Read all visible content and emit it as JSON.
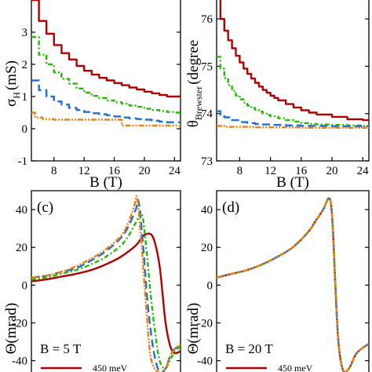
{
  "chart_data": [
    {
      "type": "line",
      "panel": "a",
      "panel_label": "",
      "xlabel": "B (T)",
      "ylabel_main": "σ",
      "ylabel_sub": "H",
      "ylabel_unit": "(mS)",
      "xlim": [
        5,
        24.8
      ],
      "ylim": [
        -1,
        4
      ],
      "xticks": [
        8,
        12,
        16,
        20,
        24
      ],
      "yticks": [
        -1,
        0,
        1,
        2,
        3
      ],
      "step": true,
      "series": [
        {
          "color": "#b00000",
          "dash": "solid",
          "x": [
            5,
            6,
            7,
            8,
            9,
            10,
            11,
            12,
            13,
            14,
            15,
            16,
            17,
            18,
            19,
            20,
            21,
            22,
            23,
            24,
            24.8
          ],
          "y": [
            4.0,
            3.35,
            2.95,
            2.6,
            2.35,
            2.15,
            1.95,
            1.8,
            1.68,
            1.58,
            1.5,
            1.42,
            1.35,
            1.28,
            1.22,
            1.15,
            1.1,
            1.05,
            1.0,
            1.0,
            1.0
          ]
        },
        {
          "color": "#22bb00",
          "dash": "6,3,2,3",
          "x": [
            5,
            6,
            7,
            8,
            9,
            10,
            11,
            12,
            13,
            14,
            15,
            16,
            17,
            18,
            19,
            20,
            21,
            22,
            23,
            24,
            24.8
          ],
          "y": [
            2.85,
            2.3,
            2.0,
            1.75,
            1.55,
            1.4,
            1.25,
            1.12,
            1.02,
            0.95,
            0.88,
            0.82,
            0.78,
            0.72,
            0.68,
            0.62,
            0.58,
            0.55,
            0.52,
            0.5,
            0.5
          ]
        },
        {
          "color": "#1f6fd6",
          "dash": "10,5",
          "x": [
            5,
            6,
            7,
            8,
            9,
            10,
            11,
            12,
            13,
            14,
            15,
            16,
            17,
            18,
            19,
            20,
            21,
            22,
            23,
            24,
            24.8
          ],
          "y": [
            1.5,
            1.2,
            1.0,
            0.85,
            0.75,
            0.65,
            0.58,
            0.52,
            0.48,
            0.45,
            0.42,
            0.38,
            0.35,
            0.32,
            0.3,
            0.28,
            0.25,
            0.22,
            0.2,
            0.2,
            0.2
          ]
        },
        {
          "color": "#f07f0e",
          "dash": "7,2,2,2,2,2",
          "x": [
            5,
            5.5,
            6.5,
            8,
            10,
            12,
            14,
            16,
            17,
            18,
            20,
            22,
            24,
            24.8
          ],
          "y": [
            0.5,
            0.35,
            0.3,
            0.28,
            0.28,
            0.28,
            0.28,
            0.28,
            0.1,
            0.1,
            0.1,
            0.1,
            0.1,
            0.1
          ]
        }
      ]
    },
    {
      "type": "line",
      "panel": "b",
      "panel_label": "",
      "xlabel": "B (T)",
      "ylabel_main": "θ",
      "ylabel_sub": "Brewster",
      "ylabel_unit": "(degree",
      "xlim": [
        5,
        24.8
      ],
      "ylim": [
        73,
        76.4
      ],
      "xticks": [
        8,
        12,
        16,
        20,
        24
      ],
      "yticks": [
        73,
        74,
        75,
        76
      ],
      "step": true,
      "series": [
        {
          "color": "#b00000",
          "dash": "solid",
          "x": [
            5,
            5.5,
            6,
            6.5,
            7,
            7.5,
            8,
            8.5,
            9,
            9.5,
            10,
            10.5,
            11,
            11.5,
            12,
            12.5,
            13,
            14,
            15,
            16,
            17,
            18,
            20,
            22,
            24,
            24.8
          ],
          "y": [
            76.5,
            76.0,
            75.75,
            75.55,
            75.38,
            75.22,
            75.08,
            74.95,
            74.84,
            74.74,
            74.65,
            74.57,
            74.5,
            74.44,
            74.38,
            74.33,
            74.28,
            74.2,
            74.13,
            74.07,
            74.02,
            73.98,
            73.93,
            73.88,
            73.86,
            73.85
          ]
        },
        {
          "color": "#22bb00",
          "dash": "6,3,2,3",
          "x": [
            5,
            5.5,
            6,
            6.5,
            7,
            7.5,
            8,
            8.5,
            9,
            9.5,
            10,
            10.5,
            11,
            11.5,
            12,
            13,
            14,
            15,
            16,
            17,
            18,
            20,
            22,
            24,
            24.8
          ],
          "y": [
            75.2,
            74.95,
            74.75,
            74.6,
            74.48,
            74.38,
            74.3,
            74.23,
            74.17,
            74.12,
            74.08,
            74.04,
            74.0,
            73.97,
            73.94,
            73.9,
            73.86,
            73.83,
            73.8,
            73.78,
            73.77,
            73.76,
            73.75,
            73.74,
            73.74
          ]
        },
        {
          "color": "#1f6fd6",
          "dash": "10,5",
          "x": [
            5,
            5.5,
            6,
            7,
            8,
            9,
            10,
            11,
            12,
            14,
            16,
            18,
            20,
            22,
            24,
            24.8
          ],
          "y": [
            74.05,
            73.97,
            73.92,
            73.86,
            73.82,
            73.8,
            73.78,
            73.77,
            73.76,
            73.75,
            73.74,
            73.74,
            73.73,
            73.73,
            73.73,
            73.73
          ]
        },
        {
          "color": "#f07f0e",
          "dash": "7,2,2,2,2,2",
          "x": [
            5,
            6,
            8,
            10,
            12,
            14,
            16,
            18,
            20,
            22,
            24,
            24.8
          ],
          "y": [
            73.74,
            73.72,
            73.72,
            73.71,
            73.71,
            73.71,
            73.7,
            73.7,
            73.7,
            73.7,
            73.7,
            73.7
          ]
        }
      ]
    },
    {
      "type": "line",
      "panel": "c",
      "panel_label": "(c)",
      "annotation": "B = 5 T",
      "ylabel": "Θ(mrad)",
      "xlim": [
        0,
        1
      ],
      "ylim": [
        -46,
        50
      ],
      "yticks": [
        -40,
        -20,
        0,
        20,
        40
      ],
      "legend": [
        {
          "label": "450 meV",
          "color": "#b00000"
        }
      ],
      "series": [
        {
          "color": "#b00000",
          "dash": "solid",
          "x": [
            0,
            0.1,
            0.2,
            0.3,
            0.4,
            0.5,
            0.6,
            0.7,
            0.75,
            0.8,
            0.83,
            0.86,
            0.88,
            0.9,
            0.93,
            0.96,
            1.0
          ],
          "y": [
            2,
            3,
            4.5,
            6,
            8,
            11,
            15,
            21,
            26,
            27,
            22,
            10,
            -5,
            -20,
            -32,
            -36,
            -35
          ]
        },
        {
          "color": "#22bb00",
          "dash": "6,3,2,3",
          "x": [
            0,
            0.1,
            0.2,
            0.3,
            0.4,
            0.5,
            0.6,
            0.65,
            0.7,
            0.74,
            0.77,
            0.8,
            0.83,
            0.86,
            0.9,
            0.94,
            1.0
          ],
          "y": [
            3,
            4,
            6,
            8,
            11,
            15,
            21,
            26,
            33,
            38,
            20,
            -5,
            -25,
            -40,
            -44,
            -38,
            -32
          ]
        },
        {
          "color": "#1f6fd6",
          "dash": "10,5",
          "x": [
            0,
            0.1,
            0.2,
            0.3,
            0.4,
            0.5,
            0.6,
            0.65,
            0.7,
            0.72,
            0.75,
            0.78,
            0.82,
            0.86,
            0.9,
            0.94,
            1.0
          ],
          "y": [
            4,
            5,
            7,
            9,
            13,
            18,
            25,
            31,
            40,
            44,
            20,
            -10,
            -35,
            -46,
            -44,
            -36,
            -31
          ]
        },
        {
          "color": "#f07f0e",
          "dash": "7,2,2,2,2,2",
          "x": [
            0,
            0.1,
            0.2,
            0.3,
            0.4,
            0.5,
            0.6,
            0.65,
            0.69,
            0.71,
            0.74,
            0.77,
            0.8,
            0.85,
            0.9,
            0.94,
            1.0
          ],
          "y": [
            4,
            5,
            7,
            10,
            14,
            19,
            26,
            33,
            42,
            46,
            20,
            -12,
            -38,
            -46,
            -44,
            -36,
            -31
          ]
        }
      ]
    },
    {
      "type": "line",
      "panel": "d",
      "panel_label": "(d)",
      "annotation": "B = 20 T",
      "ylabel": "Θ(mrad)",
      "xlim": [
        0,
        1
      ],
      "ylim": [
        -46,
        50
      ],
      "yticks": [
        -40,
        -20,
        0,
        20,
        40
      ],
      "legend": [
        {
          "label": "450 meV",
          "color": "#b00000"
        }
      ],
      "series": [
        {
          "color": "#b00000",
          "dash": "solid",
          "x": [
            0,
            0.1,
            0.2,
            0.3,
            0.4,
            0.5,
            0.6,
            0.65,
            0.7,
            0.74,
            0.76,
            0.78,
            0.8,
            0.83,
            0.87,
            0.92,
            1.0
          ],
          "y": [
            4,
            6,
            8,
            11,
            15,
            20,
            28,
            34,
            40,
            46,
            35,
            0,
            -30,
            -45,
            -44,
            -36,
            -31
          ]
        },
        {
          "color": "#22bb00",
          "dash": "6,3,2,3",
          "x": [
            0,
            0.1,
            0.2,
            0.3,
            0.4,
            0.5,
            0.6,
            0.65,
            0.7,
            0.74,
            0.76,
            0.78,
            0.8,
            0.83,
            0.87,
            0.92,
            1.0
          ],
          "y": [
            4,
            6,
            8,
            11,
            15,
            20,
            28,
            34,
            40,
            46,
            35,
            0,
            -30,
            -45,
            -44,
            -36,
            -31
          ]
        },
        {
          "color": "#1f6fd6",
          "dash": "10,5",
          "x": [
            0,
            0.1,
            0.2,
            0.3,
            0.4,
            0.5,
            0.6,
            0.65,
            0.7,
            0.74,
            0.76,
            0.78,
            0.8,
            0.83,
            0.87,
            0.92,
            1.0
          ],
          "y": [
            4,
            6,
            8,
            11,
            15,
            20,
            28,
            34,
            40,
            46,
            35,
            0,
            -30,
            -45,
            -44,
            -36,
            -31
          ]
        },
        {
          "color": "#f07f0e",
          "dash": "7,2,2,2,2,2",
          "x": [
            0,
            0.1,
            0.2,
            0.3,
            0.4,
            0.5,
            0.6,
            0.65,
            0.7,
            0.74,
            0.76,
            0.78,
            0.8,
            0.83,
            0.87,
            0.92,
            1.0
          ],
          "y": [
            4,
            6,
            8,
            11,
            15,
            20,
            28,
            34,
            40,
            46,
            35,
            0,
            -30,
            -45,
            -44,
            -36,
            -31
          ]
        }
      ]
    }
  ]
}
